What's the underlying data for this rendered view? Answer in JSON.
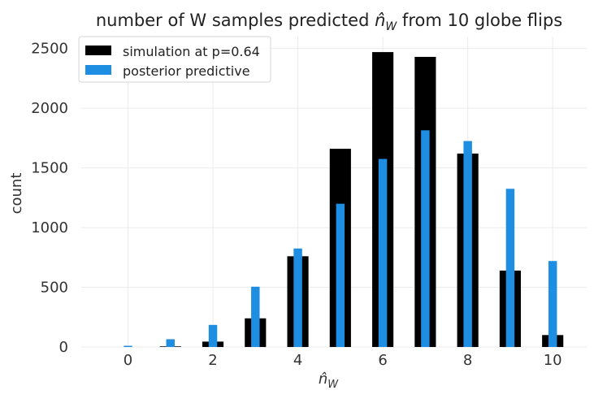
{
  "chart_data": {
    "type": "bar",
    "title_prefix": "number of W samples predicted ",
    "title_math_main": "n̂",
    "title_math_sub": "W",
    "title_suffix": " from 10 globe flips",
    "xlabel_main": "n̂",
    "xlabel_sub": "W",
    "ylabel": "count",
    "x": [
      0,
      1,
      2,
      3,
      4,
      5,
      6,
      7,
      8,
      9,
      10
    ],
    "x_ticks": [
      0,
      2,
      4,
      6,
      8,
      10
    ],
    "y_ticks": [
      0,
      500,
      1000,
      1500,
      2000,
      2500
    ],
    "xlim": [
      -1.1,
      10.8
    ],
    "ylim": [
      0,
      2600
    ],
    "grid": true,
    "legend_position": "top-left",
    "series": [
      {
        "name": "simulation at p=0.64",
        "color": "#000000",
        "values": [
          0,
          5,
          45,
          240,
          760,
          1660,
          2470,
          2430,
          1620,
          640,
          100
        ]
      },
      {
        "name": "posterior predictive",
        "color": "#1e8ee3",
        "values": [
          10,
          65,
          185,
          505,
          825,
          1200,
          1575,
          1815,
          1725,
          1325,
          720
        ]
      }
    ]
  }
}
